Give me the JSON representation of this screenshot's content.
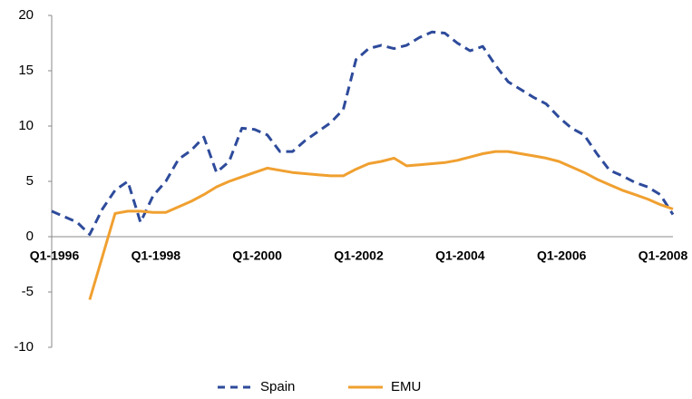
{
  "chart_data": {
    "type": "line",
    "categories": [
      "Q1-1996",
      null,
      null,
      null,
      null,
      null,
      null,
      null,
      "Q1-1998",
      null,
      null,
      null,
      null,
      null,
      null,
      null,
      "Q1-2000",
      null,
      null,
      null,
      null,
      null,
      null,
      null,
      "Q1-2002",
      null,
      null,
      null,
      null,
      null,
      null,
      null,
      "Q1-2004",
      null,
      null,
      null,
      null,
      null,
      null,
      null,
      "Q1-2006",
      null,
      null,
      null,
      null,
      null,
      null,
      null,
      "Q1-2008",
      null
    ],
    "series": [
      {
        "name": "Spain",
        "color": "#2e4b9b",
        "dashed": true,
        "values": [
          2.3,
          1.8,
          1.3,
          0.2,
          2.5,
          4.2,
          5.0,
          1.3,
          3.7,
          5.0,
          7.0,
          7.8,
          9.0,
          5.8,
          6.8,
          9.8,
          9.7,
          9.2,
          7.7,
          7.7,
          8.7,
          9.5,
          10.3,
          11.5,
          16.0,
          17.0,
          17.3,
          17.0,
          17.3,
          18.0,
          18.5,
          18.4,
          17.5,
          16.8,
          17.2,
          15.5,
          14.0,
          13.3,
          12.6,
          12.0,
          10.8,
          9.8,
          9.2,
          7.5,
          6.0,
          5.5,
          4.9,
          4.5,
          3.8,
          2.0
        ]
      },
      {
        "name": "EMU",
        "color": "#f0a030",
        "dashed": false,
        "values": [
          null,
          null,
          null,
          -5.7,
          -1.8,
          2.1,
          2.3,
          2.3,
          2.2,
          2.2,
          2.7,
          3.2,
          3.8,
          4.5,
          5.0,
          5.4,
          5.8,
          6.2,
          6.0,
          5.8,
          5.7,
          5.6,
          5.5,
          5.5,
          6.1,
          6.6,
          6.8,
          7.1,
          6.4,
          6.5,
          6.6,
          6.7,
          6.9,
          7.2,
          7.5,
          7.7,
          7.7,
          7.5,
          7.3,
          7.1,
          6.8,
          6.3,
          5.8,
          5.2,
          4.7,
          4.2,
          3.8,
          3.4,
          2.9,
          2.5
        ]
      }
    ],
    "ylim": [
      -10,
      20
    ],
    "yticks": [
      -10,
      -5,
      0,
      5,
      10,
      15,
      20
    ],
    "grid": false,
    "legend": "bottom"
  }
}
